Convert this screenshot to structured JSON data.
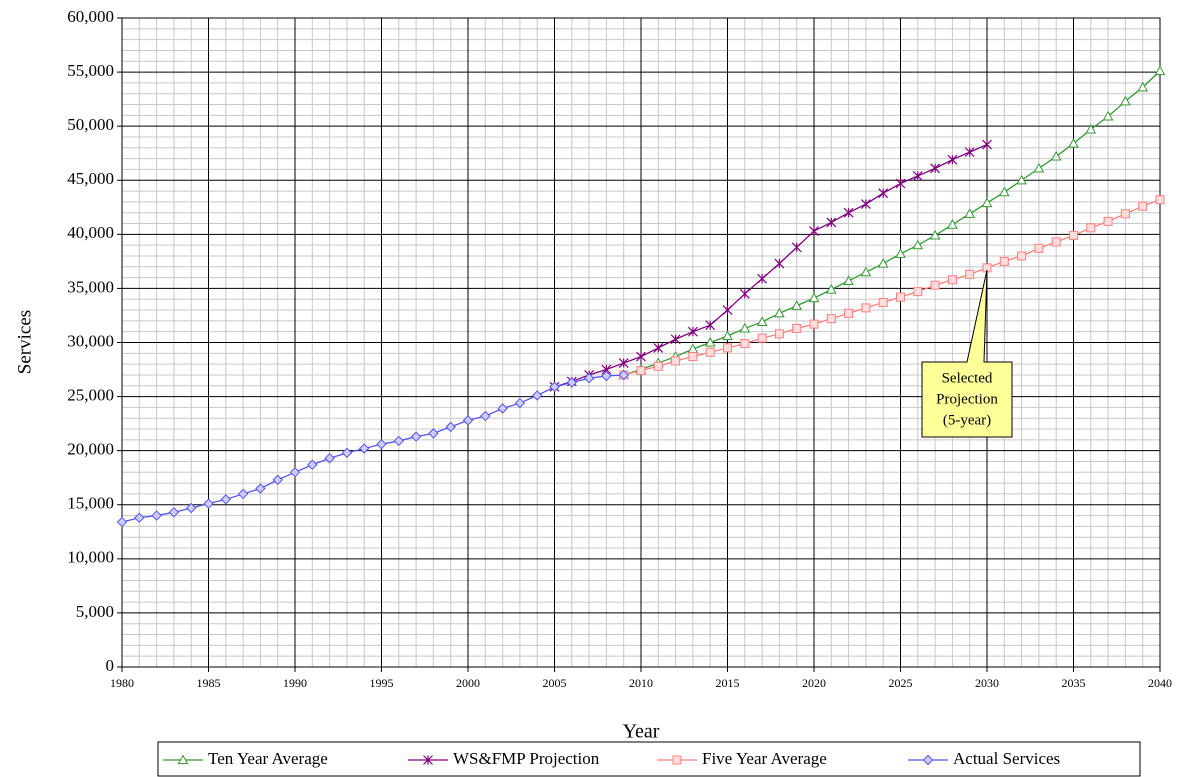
{
  "chart_data": {
    "type": "line",
    "x_label": "Year",
    "y_label": "Services",
    "xlim": [
      1980,
      2040
    ],
    "xticks": [
      1980,
      1985,
      1990,
      1995,
      2000,
      2005,
      2010,
      2015,
      2020,
      2025,
      2030,
      2035,
      2040
    ],
    "ylim": [
      0,
      60000
    ],
    "yticks": [
      0,
      {
        "value": 5000,
        "label": "5,000"
      },
      {
        "value": 10000,
        "label": "10,000"
      },
      {
        "value": 15000,
        "label": "15,000"
      },
      {
        "value": 20000,
        "label": "20,000"
      },
      {
        "value": 25000,
        "label": "25,000"
      },
      {
        "value": 30000,
        "label": "30,000"
      },
      {
        "value": 35000,
        "label": "35,000"
      },
      {
        "value": 40000,
        "label": "40,000"
      },
      {
        "value": 45000,
        "label": "45,000"
      },
      {
        "value": 50000,
        "label": "50,000"
      },
      {
        "value": 55000,
        "label": "55,000"
      },
      {
        "value": 60000,
        "label": "60,000"
      }
    ],
    "grid": true,
    "minor_grid": true,
    "legend": "bottom",
    "annotation": [
      "Selected",
      "Projection",
      "(5-year)"
    ],
    "series": [
      {
        "name": "Ten Year Average",
        "color": "#339933",
        "marker": "triangle",
        "x": [
          2009,
          2010,
          2011,
          2012,
          2013,
          2014,
          2015,
          2016,
          2017,
          2018,
          2019,
          2020,
          2021,
          2022,
          2023,
          2024,
          2025,
          2026,
          2027,
          2028,
          2029,
          2030,
          2031,
          2032,
          2033,
          2034,
          2035,
          2036,
          2037,
          2038,
          2039,
          2040
        ],
        "values": [
          27000,
          27500,
          28100,
          28700,
          29400,
          30000,
          30600,
          31300,
          31900,
          32700,
          33400,
          34100,
          34900,
          35700,
          36500,
          37300,
          38200,
          39000,
          39900,
          40900,
          41900,
          42900,
          43900,
          45000,
          46100,
          47200,
          48400,
          49700,
          50900,
          52300,
          53600,
          55100
        ]
      },
      {
        "name": "WS&FMP Projection",
        "color": "#800080",
        "marker": "star",
        "x": [
          2005,
          2006,
          2007,
          2008,
          2009,
          2010,
          2011,
          2012,
          2013,
          2014,
          2015,
          2016,
          2017,
          2018,
          2019,
          2020,
          2021,
          2022,
          2023,
          2024,
          2025,
          2026,
          2027,
          2028,
          2029,
          2030
        ],
        "values": [
          25900,
          26400,
          27000,
          27500,
          28100,
          28700,
          29500,
          30300,
          31000,
          31600,
          33000,
          34500,
          35900,
          37300,
          38800,
          40300,
          41100,
          42000,
          42800,
          43800,
          44700,
          45400,
          46100,
          46900,
          47600,
          48300
        ]
      },
      {
        "name": "Five Year Average",
        "color": "#ff7f7f",
        "marker": "square",
        "x": [
          2009,
          2010,
          2011,
          2012,
          2013,
          2014,
          2015,
          2016,
          2017,
          2018,
          2019,
          2020,
          2021,
          2022,
          2023,
          2024,
          2025,
          2026,
          2027,
          2028,
          2029,
          2030,
          2031,
          2032,
          2033,
          2034,
          2035,
          2036,
          2037,
          2038,
          2039,
          2040
        ],
        "values": [
          27000,
          27400,
          27800,
          28300,
          28700,
          29100,
          29500,
          29900,
          30400,
          30800,
          31300,
          31700,
          32200,
          32700,
          33200,
          33700,
          34200,
          34700,
          35300,
          35800,
          36300,
          36900,
          37500,
          38000,
          38700,
          39300,
          39900,
          40600,
          41200,
          41900,
          42600,
          43200
        ]
      },
      {
        "name": "Actual Services",
        "color": "#5555ee",
        "marker": "diamond",
        "x": [
          1980,
          1981,
          1982,
          1983,
          1984,
          1985,
          1986,
          1987,
          1988,
          1989,
          1990,
          1991,
          1992,
          1993,
          1994,
          1995,
          1996,
          1997,
          1998,
          1999,
          2000,
          2001,
          2002,
          2003,
          2004,
          2005,
          2006,
          2007,
          2008,
          2009
        ],
        "values": [
          13400,
          13800,
          14000,
          14300,
          14700,
          15100,
          15500,
          16000,
          16500,
          17300,
          18000,
          18700,
          19300,
          19800,
          20200,
          20600,
          20900,
          21300,
          21600,
          22200,
          22800,
          23200,
          23900,
          24400,
          25100,
          25900,
          26300,
          26700,
          26900,
          27000
        ]
      }
    ]
  }
}
